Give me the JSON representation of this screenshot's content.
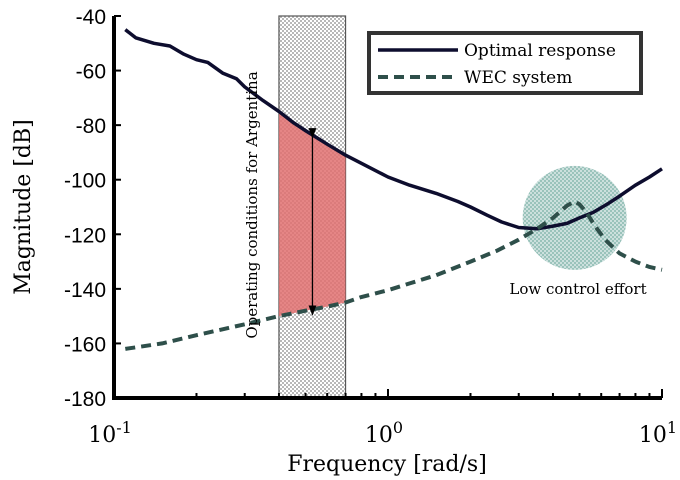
{
  "chart_data": {
    "type": "line",
    "title": "",
    "xlabel": "Frequency [rad/s]",
    "ylabel": "Magnitude [dB]",
    "xscale": "log",
    "xlim": [
      0.1,
      10
    ],
    "ylim": [
      -180,
      -40
    ],
    "xticks": [
      {
        "value": 0.1,
        "base": "10",
        "exp": "-1"
      },
      {
        "value": 1,
        "base": "10",
        "exp": "0"
      },
      {
        "value": 10,
        "base": "10",
        "exp": "1"
      }
    ],
    "yticks": [
      -180,
      -160,
      -140,
      -120,
      -100,
      -80,
      -60,
      -40
    ],
    "ytick_labels": [
      "-180",
      "-160",
      "-140",
      "-120",
      "-100",
      "-80",
      "-60",
      "-40"
    ],
    "grid": false,
    "legend_position": "top-right",
    "series": [
      {
        "name": "Optimal response",
        "color": "#0d0d2e",
        "style": "solid",
        "x": [
          0.11,
          0.12,
          0.14,
          0.16,
          0.18,
          0.2,
          0.22,
          0.25,
          0.28,
          0.3,
          0.35,
          0.4,
          0.45,
          0.5,
          0.6,
          0.7,
          0.8,
          1.0,
          1.2,
          1.5,
          1.8,
          2.0,
          2.3,
          2.6,
          3.0,
          3.5,
          4.0,
          4.5,
          5.0,
          5.6,
          6.3,
          7.0,
          8.0,
          9.0,
          10.0
        ],
        "y": [
          -45,
          -48,
          -50,
          -51,
          -54,
          -56,
          -57,
          -61,
          -63,
          -66,
          -71,
          -75,
          -79,
          -82,
          -87,
          -91,
          -94,
          -99,
          -102,
          -105,
          -108,
          -110,
          -113,
          -115.5,
          -117.5,
          -118,
          -117,
          -116,
          -114,
          -112,
          -109,
          -106,
          -102,
          -99,
          -96
        ]
      },
      {
        "name": "WEC system",
        "color": "#2e4f4a",
        "style": "dashed",
        "x": [
          0.11,
          0.15,
          0.2,
          0.3,
          0.4,
          0.5,
          0.6,
          0.7,
          0.8,
          1.0,
          1.2,
          1.5,
          2.0,
          2.5,
          3.0,
          3.5,
          4.0,
          4.5,
          4.8,
          5.0,
          5.3,
          5.7,
          6.2,
          7.0,
          8.0,
          9.0,
          10.0
        ],
        "y": [
          -162,
          -160,
          -157,
          -153,
          -150,
          -148,
          -146.5,
          -145,
          -143,
          -140.5,
          -138,
          -135,
          -130,
          -126,
          -122,
          -118,
          -114,
          -109.5,
          -108,
          -109,
          -112,
          -117,
          -122,
          -127,
          -130,
          -132,
          -133
        ]
      }
    ],
    "annotations": {
      "band_label": "Operating conditions for Argentina",
      "band_x": [
        0.4,
        0.7
      ],
      "gap_fill": {
        "x": [
          0.4,
          0.7
        ],
        "color": "#e07070"
      },
      "gap_arrow": {
        "x": 0.53,
        "y": [
          -83,
          -148
        ]
      },
      "circle_label": "Low control effort",
      "circle_center": [
        4.8,
        -114
      ],
      "circle_color": "#8fbcb4"
    }
  }
}
